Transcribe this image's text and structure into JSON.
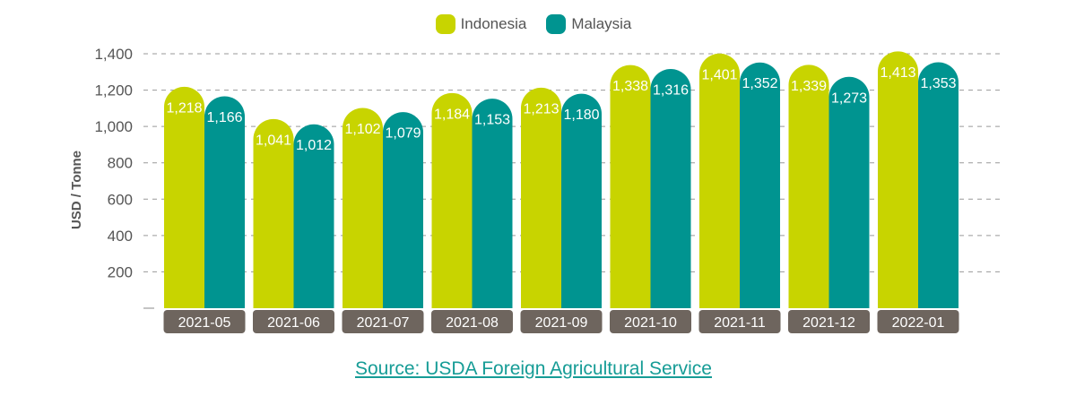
{
  "chart_data": {
    "type": "bar",
    "categories": [
      "2021-05",
      "2021-06",
      "2021-07",
      "2021-08",
      "2021-09",
      "2021-10",
      "2021-11",
      "2021-12",
      "2022-01"
    ],
    "series": [
      {
        "name": "Indonesia",
        "color": "#c8d400",
        "values": [
          1218,
          1041,
          1102,
          1184,
          1213,
          1338,
          1401,
          1339,
          1413
        ],
        "labels": [
          "1,218",
          "1,041",
          "1,102",
          "1,184",
          "1,213",
          "1,338",
          "1,401",
          "1,339",
          "1,413"
        ]
      },
      {
        "name": "Malaysia",
        "color": "#009490",
        "values": [
          1166,
          1012,
          1079,
          1153,
          1180,
          1316,
          1352,
          1273,
          1353
        ],
        "labels": [
          "1,166",
          "1,012",
          "1,079",
          "1,153",
          "1,180",
          "1,316",
          "1,352",
          "1,273",
          "1,353"
        ]
      }
    ],
    "ylabel": "USD / Tonne",
    "ylim": [
      0,
      1400
    ],
    "yticks": [
      200,
      400,
      600,
      800,
      1000,
      1200,
      1400
    ],
    "ytick_labels": [
      "200",
      "400",
      "600",
      "800",
      "1,000",
      "1,200",
      "1,400"
    ],
    "grid": true,
    "legend": "top-center",
    "category_label_bg": "#6e655e"
  },
  "source": "Source: USDA Foreign Agricultural Service"
}
